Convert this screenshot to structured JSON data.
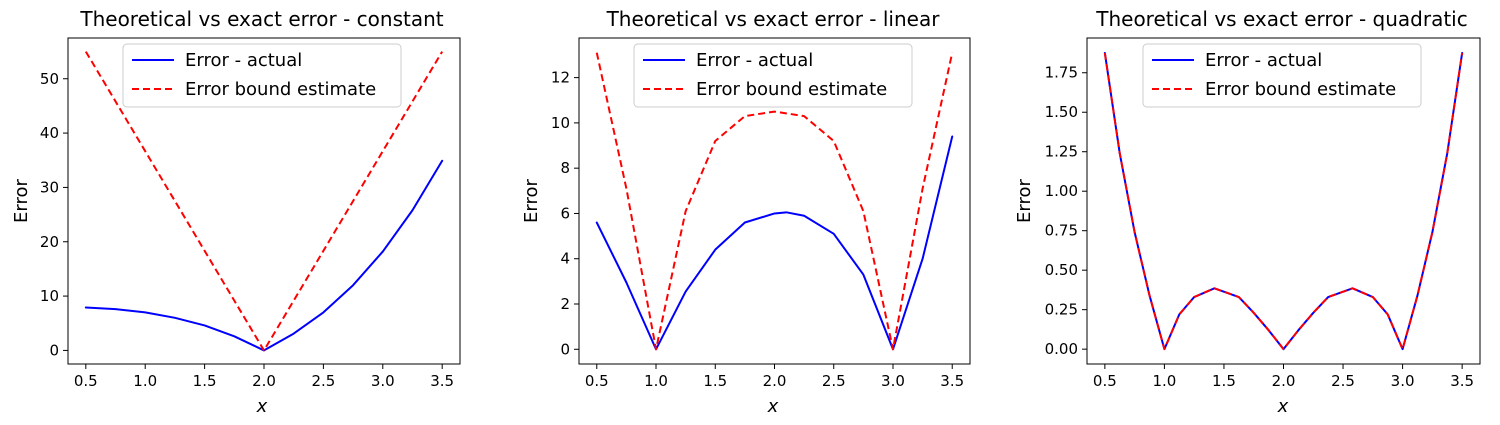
{
  "chart_data": [
    {
      "type": "line",
      "title": "Theoretical vs exact error - constant",
      "xlabel": "x",
      "ylabel": "Error",
      "xlim": [
        0.35,
        3.65
      ],
      "ylim": [
        -2.5,
        57.5
      ],
      "xticks": [
        0.5,
        1.0,
        1.5,
        2.0,
        2.5,
        3.0,
        3.5
      ],
      "xtick_labels": [
        "0.5",
        "1.0",
        "1.5",
        "2.0",
        "2.5",
        "3.0",
        "3.5"
      ],
      "yticks": [
        0,
        10,
        20,
        30,
        40,
        50
      ],
      "ytick_labels": [
        "0",
        "10",
        "20",
        "30",
        "40",
        "50"
      ],
      "legend_position": "top-center",
      "series": [
        {
          "name": "Error - actual",
          "color": "#0000ff",
          "style": "solid",
          "x": [
            0.5,
            0.75,
            1.0,
            1.25,
            1.5,
            1.75,
            2.0,
            2.25,
            2.5,
            2.75,
            3.0,
            3.25,
            3.5
          ],
          "y": [
            7.9,
            7.6,
            7.0,
            6.0,
            4.6,
            2.6,
            0.0,
            3.1,
            7.0,
            12.0,
            18.2,
            25.8,
            34.9
          ]
        },
        {
          "name": "Error bound estimate",
          "color": "#ff0000",
          "style": "dashed",
          "x": [
            0.5,
            2.0,
            3.5
          ],
          "y": [
            55.0,
            0.0,
            55.0
          ]
        }
      ]
    },
    {
      "type": "line",
      "title": "Theoretical vs exact error - linear",
      "xlabel": "x",
      "ylabel": "Error",
      "xlim": [
        0.35,
        3.65
      ],
      "ylim": [
        -0.65,
        13.75
      ],
      "xticks": [
        0.5,
        1.0,
        1.5,
        2.0,
        2.5,
        3.0,
        3.5
      ],
      "xtick_labels": [
        "0.5",
        "1.0",
        "1.5",
        "2.0",
        "2.5",
        "3.0",
        "3.5"
      ],
      "yticks": [
        0,
        2,
        4,
        6,
        8,
        10,
        12
      ],
      "ytick_labels": [
        "0",
        "2",
        "4",
        "6",
        "8",
        "10",
        "12"
      ],
      "legend_position": "top-center",
      "series": [
        {
          "name": "Error - actual",
          "color": "#0000ff",
          "style": "solid",
          "x": [
            0.5,
            0.75,
            1.0,
            1.25,
            1.5,
            1.75,
            2.0,
            2.1,
            2.25,
            2.5,
            2.75,
            3.0,
            3.25,
            3.5
          ],
          "y": [
            5.6,
            2.95,
            0.0,
            2.55,
            4.4,
            5.6,
            6.0,
            6.05,
            5.9,
            5.1,
            3.3,
            0.0,
            4.0,
            9.4
          ]
        },
        {
          "name": "Error bound estimate",
          "color": "#ff0000",
          "style": "dashed",
          "x": [
            0.5,
            0.75,
            1.0,
            1.25,
            1.5,
            1.75,
            2.0,
            2.25,
            2.5,
            2.75,
            3.0,
            3.25,
            3.5
          ],
          "y": [
            13.1,
            7.1,
            0.0,
            6.1,
            9.2,
            10.3,
            10.5,
            10.3,
            9.2,
            6.1,
            0.0,
            7.1,
            13.1
          ]
        }
      ]
    },
    {
      "type": "line",
      "title": "Theoretical vs exact error - quadratic",
      "xlabel": "x",
      "ylabel": "Error",
      "xlim": [
        0.35,
        3.65
      ],
      "ylim": [
        -0.094,
        1.97
      ],
      "xticks": [
        0.5,
        1.0,
        1.5,
        2.0,
        2.5,
        3.0,
        3.5
      ],
      "xtick_labels": [
        "0.5",
        "1.0",
        "1.5",
        "2.0",
        "2.5",
        "3.0",
        "3.5"
      ],
      "yticks": [
        0.0,
        0.25,
        0.5,
        0.75,
        1.0,
        1.25,
        1.5,
        1.75
      ],
      "ytick_labels": [
        "0.00",
        "0.25",
        "0.50",
        "0.75",
        "1.00",
        "1.25",
        "1.50",
        "1.75"
      ],
      "legend_position": "top-center",
      "series": [
        {
          "name": "Error - actual",
          "color": "#0000ff",
          "style": "solid",
          "x": [
            0.5,
            0.625,
            0.75,
            0.875,
            1.0,
            1.125,
            1.25,
            1.42,
            1.625,
            1.75,
            1.875,
            2.0,
            2.125,
            2.25,
            2.375,
            2.58,
            2.75,
            2.875,
            3.0,
            3.125,
            3.25,
            3.375,
            3.5
          ],
          "y": [
            1.875,
            1.24,
            0.74,
            0.34,
            0.0,
            0.22,
            0.33,
            0.385,
            0.33,
            0.23,
            0.12,
            0.0,
            0.12,
            0.23,
            0.33,
            0.385,
            0.33,
            0.22,
            0.0,
            0.34,
            0.74,
            1.24,
            1.875
          ]
        },
        {
          "name": "Error bound estimate",
          "color": "#ff0000",
          "style": "dashed",
          "x": [
            0.5,
            0.625,
            0.75,
            0.875,
            1.0,
            1.125,
            1.25,
            1.42,
            1.625,
            1.75,
            1.875,
            2.0,
            2.125,
            2.25,
            2.375,
            2.58,
            2.75,
            2.875,
            3.0,
            3.125,
            3.25,
            3.375,
            3.5
          ],
          "y": [
            1.875,
            1.24,
            0.74,
            0.34,
            0.0,
            0.22,
            0.33,
            0.385,
            0.33,
            0.23,
            0.12,
            0.0,
            0.12,
            0.23,
            0.33,
            0.385,
            0.33,
            0.22,
            0.0,
            0.34,
            0.74,
            1.24,
            1.875
          ]
        }
      ]
    }
  ]
}
